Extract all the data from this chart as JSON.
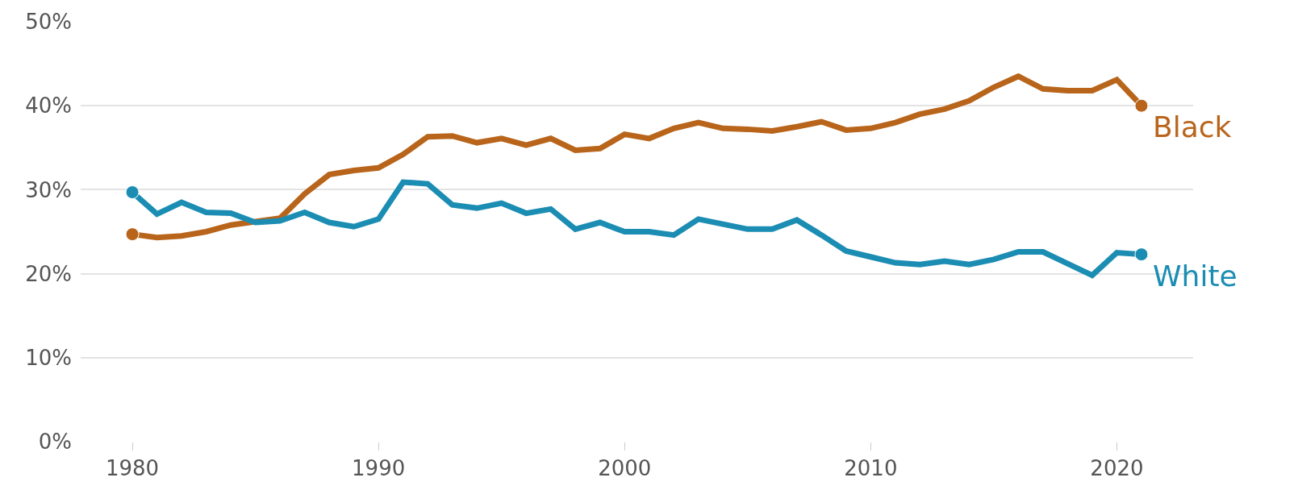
{
  "chart_data": {
    "type": "line",
    "x": [
      1980,
      1981,
      1982,
      1983,
      1984,
      1985,
      1986,
      1987,
      1988,
      1989,
      1990,
      1991,
      1992,
      1993,
      1994,
      1995,
      1996,
      1997,
      1998,
      1999,
      2000,
      2001,
      2002,
      2003,
      2004,
      2005,
      2006,
      2007,
      2008,
      2009,
      2010,
      2011,
      2012,
      2013,
      2014,
      2015,
      2016,
      2017,
      2018,
      2019,
      2020,
      2021
    ],
    "series": [
      {
        "name": "Black",
        "color": "#b8651b",
        "values": [
          24.7,
          24.3,
          24.5,
          25.0,
          25.8,
          26.2,
          26.6,
          29.5,
          31.8,
          32.3,
          32.6,
          34.2,
          36.3,
          36.4,
          35.6,
          36.1,
          35.3,
          36.1,
          34.7,
          34.9,
          36.6,
          36.1,
          37.3,
          38.0,
          37.3,
          37.2,
          37.0,
          37.5,
          38.1,
          37.1,
          37.3,
          38.0,
          39.0,
          39.6,
          40.6,
          42.2,
          43.5,
          42.0,
          41.8,
          41.8,
          43.1,
          40.0
        ]
      },
      {
        "name": "White",
        "color": "#1b8db3",
        "values": [
          29.7,
          27.1,
          28.5,
          27.3,
          27.2,
          26.1,
          26.3,
          27.3,
          26.1,
          25.6,
          26.5,
          30.9,
          30.7,
          28.2,
          27.8,
          28.4,
          27.2,
          27.7,
          25.3,
          26.1,
          25.0,
          25.0,
          24.6,
          26.5,
          25.9,
          25.3,
          25.3,
          26.4,
          24.6,
          22.7,
          22.0,
          21.3,
          21.1,
          21.5,
          21.1,
          21.7,
          22.6,
          22.6,
          21.2,
          19.8,
          22.5,
          22.3
        ]
      }
    ],
    "xlim": [
      1977.9,
      2023.1
    ],
    "xticks": [
      1980,
      1990,
      2000,
      2010,
      2020
    ],
    "ylim": [
      0,
      50
    ],
    "yticks": [
      {
        "value": 0,
        "label": "0%"
      },
      {
        "value": 10,
        "label": "10%"
      },
      {
        "value": 20,
        "label": "20%"
      },
      {
        "value": 30,
        "label": "30%"
      },
      {
        "value": 40,
        "label": "40%"
      },
      {
        "value": 50,
        "label": "50%"
      }
    ],
    "grid": "y",
    "legend": false,
    "line_style": "solid"
  }
}
